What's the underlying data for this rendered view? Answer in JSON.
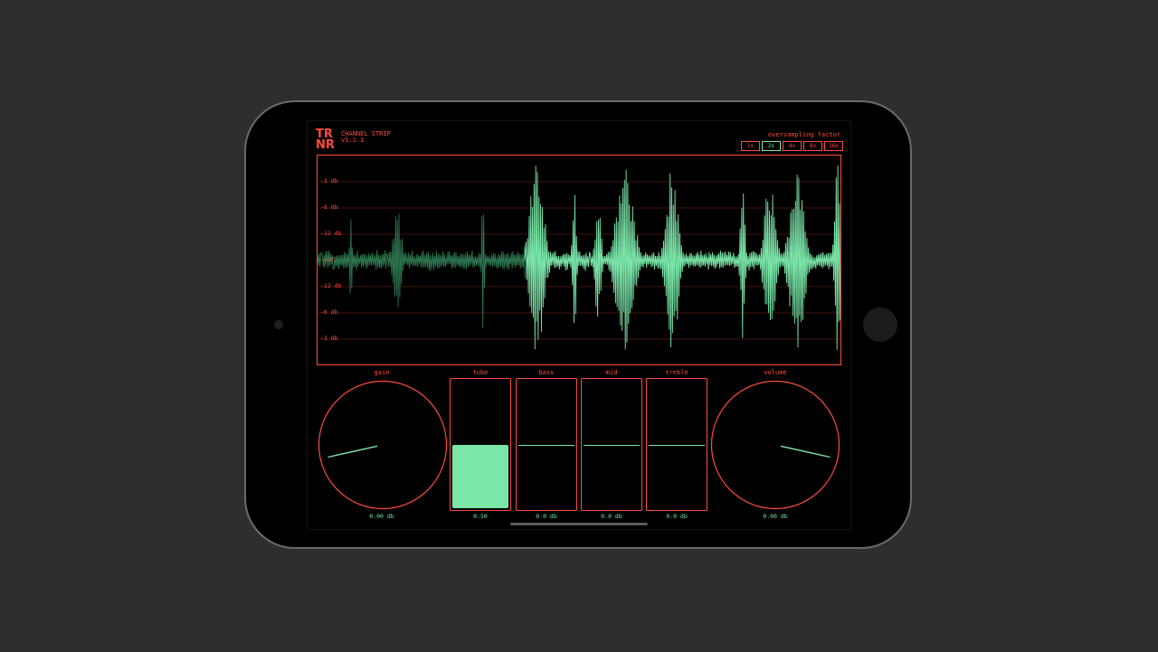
{
  "app": {
    "logo_line1": "TR",
    "logo_line2": "NR",
    "title": "CHANNEL STRIP",
    "version": "v1.1.1"
  },
  "oversampling": {
    "label": "oversampling factor",
    "options": [
      "1x",
      "2x",
      "4x",
      "8x",
      "16x"
    ],
    "selected": "2x"
  },
  "scope": {
    "db_labels": [
      "-3 db",
      "-6 db",
      "-12 db",
      "-inf",
      "-12 db",
      "-6 db",
      "-3 db"
    ]
  },
  "controls": {
    "gain": {
      "label": "gain",
      "value": "0.00 db",
      "level": 0.12
    },
    "tube": {
      "label": "tube",
      "value": "0.50",
      "level": 0.5
    },
    "bass": {
      "label": "bass",
      "value": "0.0 db",
      "level": 0.5
    },
    "mid": {
      "label": "mid",
      "value": "0.0 db",
      "level": 0.5
    },
    "treble": {
      "label": "treble",
      "value": "0.0 db",
      "level": 0.5
    },
    "volume": {
      "label": "volume",
      "value": "0.00 db",
      "level": 0.88
    }
  },
  "colors": {
    "accent": "#ff4b3e",
    "signal": "#7ae6a8",
    "background": "#000000",
    "page": "#2e2e2e"
  }
}
